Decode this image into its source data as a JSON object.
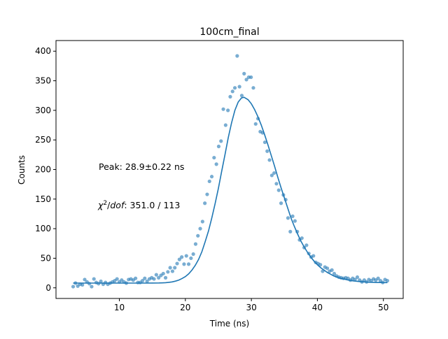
{
  "chart_data": {
    "type": "scatter",
    "title": "100cm_final",
    "xlabel": "Time (ns)",
    "ylabel": "Counts",
    "xlim": [
      0.4,
      53.0
    ],
    "ylim": [
      -18,
      418
    ],
    "xticks": [
      10,
      20,
      30,
      40,
      50
    ],
    "yticks": [
      0,
      50,
      100,
      150,
      200,
      250,
      300,
      350,
      400
    ],
    "grid": false,
    "legend": "none",
    "annotations": {
      "peak": "Peak: 28.9±0.22 ns",
      "chi2_symbol": "χ",
      "chi2_sup": "2",
      "chi2_slash": "/",
      "chi2_dof": "dof",
      "chi2_value": ": 351.0 / 113"
    },
    "colors": {
      "points": "#1f77b4",
      "fit": "#1f77b4",
      "points_alpha": 0.6
    },
    "series": [
      {
        "kind": "scatter",
        "x": [
          3.0,
          3.35,
          3.7,
          4.05,
          4.4,
          4.75,
          5.1,
          5.45,
          5.8,
          6.15,
          6.5,
          6.85,
          7.2,
          7.55,
          7.9,
          8.25,
          8.6,
          8.95,
          9.3,
          9.65,
          10.0,
          10.35,
          10.7,
          11.05,
          11.4,
          11.75,
          12.1,
          12.45,
          12.8,
          13.15,
          13.5,
          13.85,
          14.2,
          14.55,
          14.9,
          15.25,
          15.6,
          15.95,
          16.3,
          16.65,
          17.0,
          17.35,
          17.7,
          18.05,
          18.4,
          18.75,
          19.1,
          19.45,
          19.8,
          20.15,
          20.5,
          20.85,
          21.2,
          21.55,
          21.9,
          22.25,
          22.6,
          22.95,
          23.3,
          23.65,
          24.0,
          24.35,
          24.7,
          25.05,
          25.4,
          25.75,
          26.1,
          26.45,
          26.8,
          27.15,
          27.5,
          27.85,
          28.2,
          28.55,
          28.9,
          29.25,
          29.6,
          29.95,
          30.3,
          30.65,
          31.0,
          31.35,
          31.7,
          32.05,
          32.4,
          32.75,
          33.1,
          33.45,
          33.8,
          34.15,
          34.5,
          34.85,
          35.2,
          35.55,
          35.9,
          36.25,
          36.6,
          36.95,
          37.3,
          37.65,
          38.0,
          38.35,
          38.7,
          39.05,
          39.4,
          39.75,
          40.1,
          40.45,
          40.8,
          41.15,
          41.5,
          41.85,
          42.2,
          42.55,
          42.9,
          43.25,
          43.6,
          43.95,
          44.3,
          44.65,
          45.0,
          45.35,
          45.7,
          46.05,
          46.4,
          46.75,
          47.1,
          47.45,
          47.8,
          48.15,
          48.5,
          48.85,
          49.2,
          49.55,
          49.9,
          50.25,
          50.6
        ],
        "y": [
          2,
          8,
          3,
          6,
          5,
          14,
          10,
          7,
          2,
          15,
          9,
          7,
          11,
          6,
          9,
          6,
          8,
          10,
          12,
          15,
          10,
          13,
          10,
          8,
          14,
          15,
          13,
          16,
          9,
          9,
          12,
          16,
          11,
          15,
          17,
          15,
          22,
          17,
          21,
          24,
          17,
          27,
          34,
          28,
          34,
          41,
          48,
          52,
          40,
          54,
          40,
          50,
          57,
          74,
          88,
          100,
          112,
          143,
          158,
          180,
          188,
          220,
          209,
          239,
          248,
          302,
          275,
          300,
          323,
          332,
          338,
          392,
          340,
          325,
          362,
          352,
          356,
          356,
          338,
          277,
          286,
          264,
          262,
          246,
          231,
          216,
          190,
          194,
          176,
          165,
          143,
          157,
          149,
          118,
          95,
          121,
          113,
          95,
          81,
          84,
          68,
          72,
          58,
          52,
          54,
          43,
          41,
          39,
          28,
          35,
          33,
          28,
          30,
          24,
          20,
          18,
          17,
          16,
          17,
          16,
          13,
          16,
          14,
          18,
          13,
          10,
          13,
          10,
          14,
          12,
          15,
          13,
          16,
          12,
          9,
          14,
          12
        ]
      },
      {
        "kind": "line",
        "name": "",
        "x": [
          3.0,
          4.0,
          5.0,
          6.0,
          7.0,
          8.0,
          9.0,
          10.0,
          11.0,
          12.0,
          13.0,
          14.0,
          15.0,
          16.0,
          16.5,
          17.0,
          17.5,
          18.0,
          18.5,
          19.0,
          19.5,
          20.0,
          20.5,
          21.0,
          21.5,
          22.0,
          22.5,
          23.0,
          23.5,
          24.0,
          24.5,
          25.0,
          25.5,
          26.0,
          26.5,
          27.0,
          27.5,
          28.0,
          28.5,
          28.9,
          29.5,
          30.0,
          30.5,
          31.0,
          31.5,
          32.0,
          32.5,
          33.0,
          33.5,
          34.0,
          34.5,
          35.0,
          35.5,
          36.0,
          36.5,
          37.0,
          37.5,
          38.0,
          38.5,
          39.0,
          39.5,
          40.0,
          40.5,
          41.0,
          41.5,
          42.0,
          42.5,
          43.0,
          43.5,
          44.0,
          44.5,
          45.0,
          45.5,
          46.0,
          46.5,
          47.0,
          47.5,
          48.0,
          48.5,
          49.0,
          49.5,
          50.0,
          50.6
        ],
        "y": [
          8,
          8,
          8,
          8,
          8,
          8,
          8,
          8,
          8,
          8,
          8,
          8,
          8.1,
          8.2,
          8.4,
          8.7,
          9.3,
          10,
          11.3,
          13,
          15.7,
          19,
          23.6,
          30,
          38,
          48,
          61,
          78,
          96,
          118,
          142,
          168,
          197,
          225,
          254,
          279,
          300,
          314,
          321,
          322,
          318,
          311,
          301,
          289,
          275,
          259,
          242,
          224,
          206,
          187,
          169,
          152,
          135,
          118,
          104,
          91,
          79,
          69,
          60,
          52,
          45,
          39,
          34,
          30,
          26,
          23,
          20,
          18,
          16,
          15,
          13.5,
          12.5,
          11.6,
          11,
          10.4,
          10,
          9.7,
          9.4,
          9.2,
          9,
          8.9,
          8.8,
          8.8
        ]
      }
    ]
  }
}
